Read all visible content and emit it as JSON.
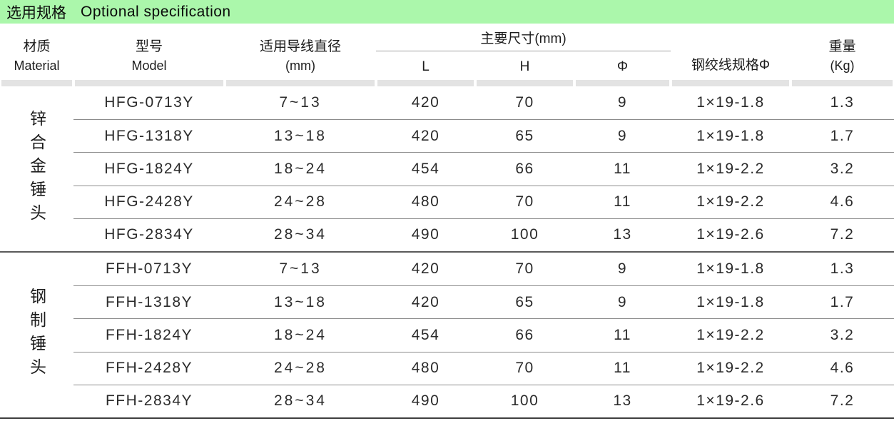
{
  "title": {
    "zh": "选用规格",
    "en": "Optional specification"
  },
  "colors": {
    "title_bar_green": "#abf7ab",
    "divider_gray": "#e3e3e3",
    "row_line_gray": "#8c8c8c",
    "group_line_dark": "#5a5a5a",
    "text": "#2b2b2b"
  },
  "table": {
    "headers": {
      "material": {
        "line1": "材质",
        "line2": "Material"
      },
      "model": {
        "line1": "型号",
        "line2": "Model"
      },
      "diameter": {
        "line1": "适用导线直径",
        "line2": "(mm)"
      },
      "dimensions_group": "主要尺寸(mm)",
      "dim_sub": [
        "L",
        "H",
        "Φ"
      ],
      "steel_strand": "钢绞线规格Φ",
      "weight": {
        "line1": "重量",
        "line2": "(Kg)"
      }
    },
    "groups": [
      {
        "material": "锌合金锤头",
        "rows": [
          {
            "model": "HFG-0713Y",
            "diameter": "7~13",
            "L": "420",
            "H": "70",
            "phi": "9",
            "strand": "1×19-1.8",
            "weight": "1.3"
          },
          {
            "model": "HFG-1318Y",
            "diameter": "13~18",
            "L": "420",
            "H": "65",
            "phi": "9",
            "strand": "1×19-1.8",
            "weight": "1.7"
          },
          {
            "model": "HFG-1824Y",
            "diameter": "18~24",
            "L": "454",
            "H": "66",
            "phi": "11",
            "strand": "1×19-2.2",
            "weight": "3.2"
          },
          {
            "model": "HFG-2428Y",
            "diameter": "24~28",
            "L": "480",
            "H": "70",
            "phi": "11",
            "strand": "1×19-2.2",
            "weight": "4.6"
          },
          {
            "model": "HFG-2834Y",
            "diameter": "28~34",
            "L": "490",
            "H": "100",
            "phi": "13",
            "strand": "1×19-2.6",
            "weight": "7.2"
          }
        ]
      },
      {
        "material": "钢制锤头",
        "rows": [
          {
            "model": "FFH-0713Y",
            "diameter": "7~13",
            "L": "420",
            "H": "70",
            "phi": "9",
            "strand": "1×19-1.8",
            "weight": "1.3"
          },
          {
            "model": "FFH-1318Y",
            "diameter": "13~18",
            "L": "420",
            "H": "65",
            "phi": "9",
            "strand": "1×19-1.8",
            "weight": "1.7"
          },
          {
            "model": "FFH-1824Y",
            "diameter": "18~24",
            "L": "454",
            "H": "66",
            "phi": "11",
            "strand": "1×19-2.2",
            "weight": "3.2"
          },
          {
            "model": "FFH-2428Y",
            "diameter": "24~28",
            "L": "480",
            "H": "70",
            "phi": "11",
            "strand": "1×19-2.2",
            "weight": "4.6"
          },
          {
            "model": "FFH-2834Y",
            "diameter": "28~34",
            "L": "490",
            "H": "100",
            "phi": "13",
            "strand": "1×19-2.6",
            "weight": "7.2"
          }
        ]
      }
    ]
  }
}
